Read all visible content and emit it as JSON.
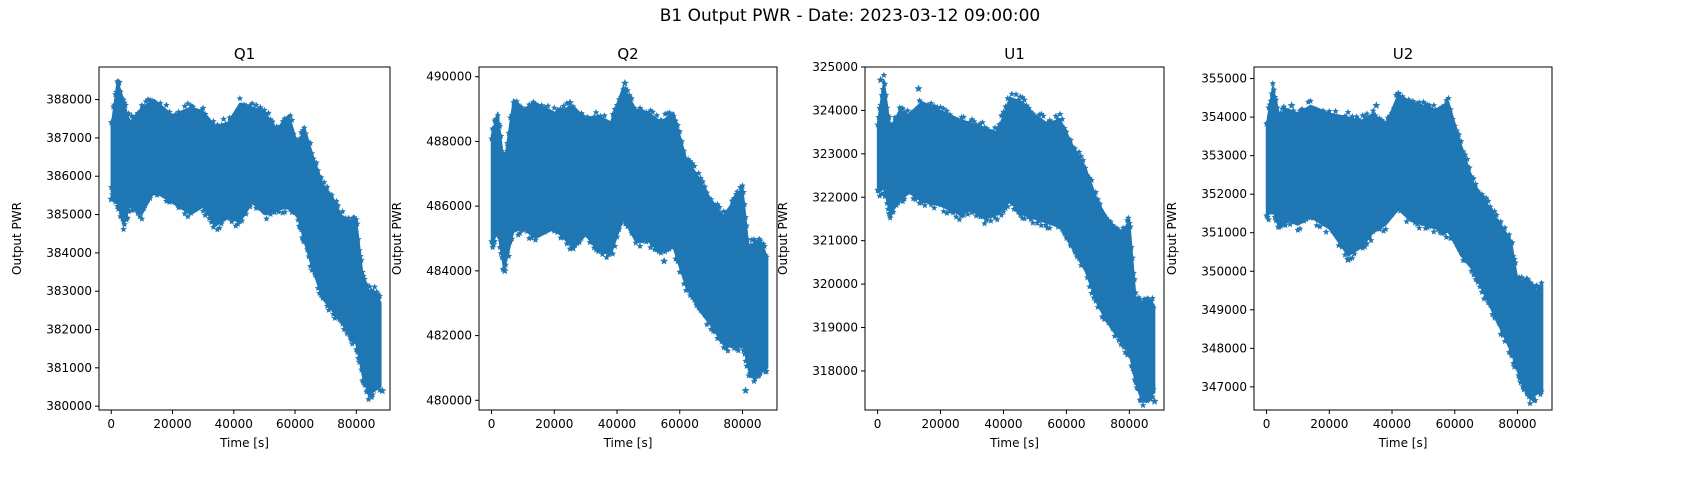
{
  "figure": {
    "title": "B1 Output PWR - Date: 2023-03-12 09:00:00",
    "marker_color": "#1f77b4"
  },
  "chart_data": [
    {
      "type": "scatter",
      "title": "Q1",
      "xlabel": "Time [s]",
      "ylabel": "Output PWR",
      "xlim": [
        -4000,
        91000
      ],
      "ylim": [
        379900,
        388850
      ],
      "xticks": [
        0,
        20000,
        40000,
        60000,
        80000
      ],
      "yticks": [
        380000,
        381000,
        382000,
        383000,
        384000,
        385000,
        386000,
        387000,
        388000
      ],
      "envelope": {
        "x": [
          0,
          2000,
          4000,
          6000,
          10000,
          14000,
          20000,
          26000,
          30000,
          34000,
          38000,
          42000,
          46000,
          50000,
          54000,
          58000,
          61000,
          63000,
          66000,
          69000,
          72000,
          75000,
          78000,
          80000,
          82000,
          84000,
          86000,
          88000
        ],
        "upper": [
          387300,
          388500,
          388000,
          387400,
          387800,
          388000,
          387600,
          387800,
          387700,
          387300,
          387400,
          387900,
          387800,
          387700,
          387200,
          387600,
          386800,
          387300,
          386500,
          385800,
          385500,
          385000,
          384800,
          384900,
          383500,
          383000,
          383000,
          382700
        ],
        "lower": [
          385600,
          385300,
          384700,
          385200,
          385000,
          385600,
          385300,
          385000,
          385200,
          384700,
          384900,
          384800,
          385300,
          385000,
          385100,
          385200,
          384900,
          384300,
          383500,
          382800,
          382500,
          382200,
          381800,
          381600,
          380800,
          380300,
          380400,
          380500
        ]
      },
      "outliers": [
        [
          0,
          385400
        ],
        [
          2500,
          388450
        ],
        [
          27000,
          385900
        ],
        [
          79000,
          384900
        ],
        [
          88500,
          380400
        ]
      ]
    },
    {
      "type": "scatter",
      "title": "Q2",
      "xlabel": "Time [s]",
      "ylabel": "Output PWR",
      "xlim": [
        -4000,
        91000
      ],
      "ylim": [
        479700,
        490300
      ],
      "xticks": [
        0,
        20000,
        40000,
        60000,
        80000
      ],
      "yticks": [
        480000,
        482000,
        484000,
        486000,
        488000,
        490000
      ],
      "envelope": {
        "x": [
          0,
          2000,
          4000,
          7000,
          10000,
          14000,
          20000,
          26000,
          30000,
          34000,
          38000,
          42000,
          46000,
          50000,
          54000,
          58000,
          62000,
          66000,
          70000,
          74000,
          78000,
          80000,
          82000,
          84000,
          86000,
          88000
        ],
        "upper": [
          488200,
          488900,
          487300,
          489300,
          489000,
          489200,
          488900,
          489100,
          488700,
          488800,
          488600,
          489700,
          489000,
          488900,
          488600,
          488900,
          487500,
          486900,
          486200,
          485700,
          486300,
          486600,
          484700,
          484900,
          484900,
          484400
        ],
        "lower": [
          484800,
          485200,
          484000,
          485200,
          485300,
          485000,
          485300,
          484700,
          485100,
          484600,
          484500,
          485600,
          484900,
          484900,
          484600,
          484700,
          483500,
          482800,
          482300,
          481700,
          481600,
          481800,
          480900,
          480700,
          480900,
          481000
        ]
      },
      "outliers": [
        [
          4200,
          484000
        ],
        [
          25000,
          489200
        ],
        [
          26000,
          484700
        ],
        [
          42500,
          489800
        ],
        [
          81000,
          480300
        ],
        [
          55000,
          484300
        ]
      ]
    },
    {
      "type": "scatter",
      "title": "U1",
      "xlabel": "Time [s]",
      "ylabel": "Output PWR",
      "xlim": [
        -4000,
        91000
      ],
      "ylim": [
        317100,
        325000
      ],
      "xticks": [
        0,
        20000,
        40000,
        60000,
        80000
      ],
      "yticks": [
        318000,
        319000,
        320000,
        321000,
        322000,
        323000,
        324000,
        325000
      ],
      "envelope": {
        "x": [
          0,
          2000,
          4000,
          7000,
          10000,
          14000,
          20000,
          26000,
          30000,
          34000,
          38000,
          42000,
          46000,
          50000,
          54000,
          58000,
          62000,
          66000,
          70000,
          74000,
          78000,
          80000,
          82000,
          84000,
          86000,
          88000
        ],
        "upper": [
          323700,
          324700,
          323600,
          324000,
          323900,
          324200,
          324000,
          323800,
          323700,
          323600,
          323500,
          324300,
          324200,
          323900,
          323700,
          323800,
          323200,
          322700,
          321900,
          321400,
          321200,
          321500,
          319700,
          319600,
          319700,
          319500
        ],
        "lower": [
          322100,
          322200,
          321600,
          321900,
          322100,
          321900,
          321800,
          321600,
          321700,
          321500,
          321600,
          321900,
          321600,
          321500,
          321400,
          321300,
          320800,
          320300,
          319500,
          319000,
          318600,
          318400,
          317700,
          317300,
          317400,
          317500
        ]
      },
      "outliers": [
        [
          1000,
          324700
        ],
        [
          13000,
          324500
        ],
        [
          4000,
          321600
        ],
        [
          88000,
          317300
        ]
      ]
    },
    {
      "type": "scatter",
      "title": "U2",
      "xlabel": "Time [s]",
      "ylabel": "Output PWR",
      "xlim": [
        -4000,
        91000
      ],
      "ylim": [
        346400,
        355300
      ],
      "xticks": [
        0,
        20000,
        40000,
        60000,
        80000
      ],
      "yticks": [
        347000,
        348000,
        349000,
        350000,
        351000,
        352000,
        353000,
        354000,
        355000
      ],
      "envelope": {
        "x": [
          0,
          2000,
          4000,
          7000,
          10000,
          14000,
          20000,
          26000,
          30000,
          34000,
          38000,
          42000,
          46000,
          50000,
          54000,
          58000,
          62000,
          66000,
          70000,
          74000,
          78000,
          80000,
          82000,
          84000,
          86000,
          88000
        ],
        "upper": [
          353800,
          354800,
          354100,
          354200,
          354100,
          354300,
          354100,
          354000,
          353900,
          354100,
          353800,
          354600,
          354400,
          354300,
          354200,
          354400,
          353300,
          352300,
          351800,
          351300,
          350800,
          349800,
          349700,
          349600,
          349500,
          349600
        ],
        "lower": [
          351400,
          351600,
          351100,
          351300,
          351200,
          351400,
          351100,
          350400,
          350600,
          351000,
          351200,
          351600,
          351300,
          351200,
          351100,
          351000,
          350400,
          350000,
          349300,
          348600,
          347900,
          347400,
          347000,
          346700,
          346800,
          346900
        ]
      },
      "outliers": [
        [
          8000,
          354300
        ],
        [
          26000,
          350300
        ],
        [
          35000,
          354300
        ],
        [
          42000,
          354600
        ],
        [
          83000,
          349800
        ]
      ]
    }
  ]
}
